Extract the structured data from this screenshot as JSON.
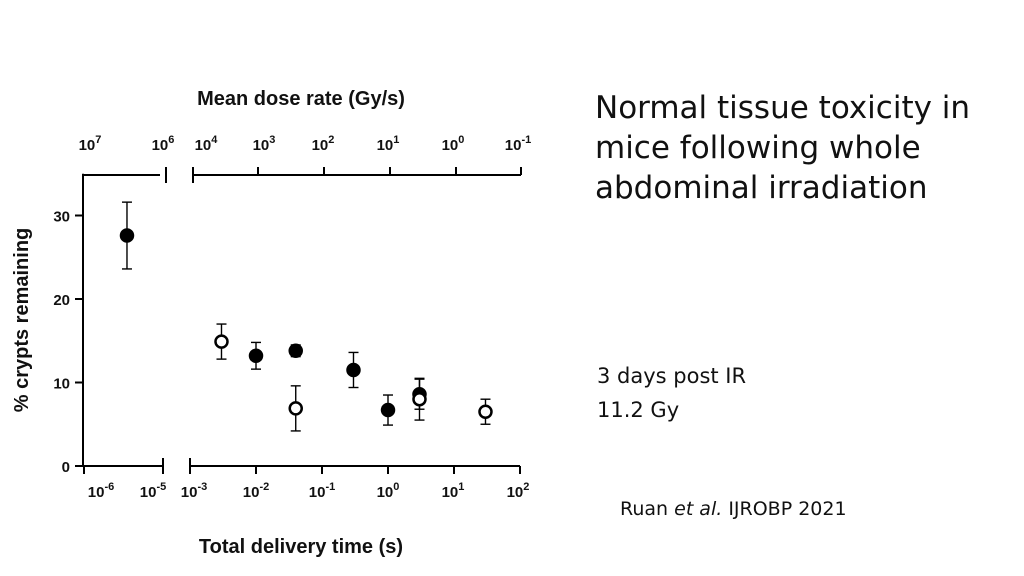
{
  "slide": {
    "title": "Normal tissue toxicity in mice following whole abdominal irradiation",
    "notes": [
      "3 days post IR",
      "11.2 Gy"
    ],
    "citation": {
      "authors": "Ruan",
      "etal": "et al.",
      "journal": "IJROBP 2021"
    }
  },
  "chart_data": {
    "type": "scatter",
    "xlabel": "Total delivery time (s)",
    "x2label": "Mean dose rate (Gy/s)",
    "ylabel": "% crypts remaining",
    "xscale": "log",
    "x_axis_break": [
      1e-05,
      0.001
    ],
    "xlim": [
      1e-06,
      100
    ],
    "ylim": [
      0,
      35
    ],
    "x_ticks": [
      {
        "value": 1e-06,
        "base": "10",
        "exp": "-6"
      },
      {
        "value": 1e-05,
        "base": "10",
        "exp": "-5"
      },
      {
        "value": 0.001,
        "base": "10",
        "exp": "-3"
      },
      {
        "value": 0.01,
        "base": "10",
        "exp": "-2"
      },
      {
        "value": 0.1,
        "base": "10",
        "exp": "-1"
      },
      {
        "value": 1,
        "base": "10",
        "exp": "0"
      },
      {
        "value": 10,
        "base": "10",
        "exp": "1"
      },
      {
        "value": 100,
        "base": "10",
        "exp": "2"
      }
    ],
    "x2_ticks": [
      {
        "value": 10000000.0,
        "base": "10",
        "exp": "7"
      },
      {
        "value": 1000000.0,
        "base": "10",
        "exp": "6"
      },
      {
        "value": 10000.0,
        "base": "10",
        "exp": "4"
      },
      {
        "value": 1000.0,
        "base": "10",
        "exp": "3"
      },
      {
        "value": 100,
        "base": "10",
        "exp": "2"
      },
      {
        "value": 10,
        "base": "10",
        "exp": "1"
      },
      {
        "value": 1,
        "base": "10",
        "exp": "0"
      },
      {
        "value": 0.1,
        "base": "10",
        "exp": "-1"
      }
    ],
    "y_ticks": [
      0,
      10,
      20,
      30
    ],
    "series": [
      {
        "marker": "filled-circle",
        "color": "#000000",
        "points": [
          {
            "x": 3.5e-06,
            "y": 27.6,
            "err": 4.0
          },
          {
            "x": 0.01,
            "y": 13.2,
            "err": 1.6
          },
          {
            "x": 0.04,
            "y": 13.8,
            "err": 0.7
          },
          {
            "x": 0.3,
            "y": 11.5,
            "err": 2.1
          },
          {
            "x": 1.0,
            "y": 6.7,
            "err": 1.8
          },
          {
            "x": 3.0,
            "y": 8.6,
            "err": 1.8
          }
        ]
      },
      {
        "marker": "open-circle",
        "color": "#000000",
        "points": [
          {
            "x": 0.003,
            "y": 14.9,
            "err": 2.1
          },
          {
            "x": 0.04,
            "y": 6.9,
            "err": 2.7
          },
          {
            "x": 3.0,
            "y": 8.0,
            "err": 2.5
          },
          {
            "x": 30,
            "y": 6.5,
            "err": 1.5
          }
        ]
      }
    ]
  }
}
